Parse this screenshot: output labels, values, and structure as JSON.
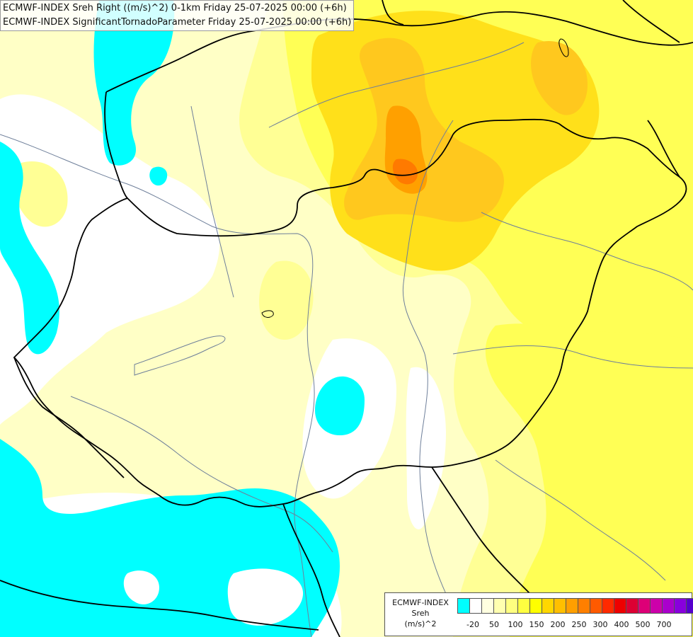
{
  "title": {
    "line1": "ECMWF-INDEX Sreh Right ((m/s)^2) 0-1km Friday 25-07-2025 00:00 (+6h)",
    "line2": "ECMWF-INDEX SignificantTornadoParameter Friday 25-07-2025 00:00 (+6h)"
  },
  "legend": {
    "line1": "ECMWF-INDEX",
    "line2": "Sreh",
    "line3": "(m/s)^2",
    "colors": [
      "#00ffff",
      "#ffffff",
      "#ffffe0",
      "#ffffb0",
      "#ffff80",
      "#ffff40",
      "#ffff00",
      "#ffd700",
      "#ffbf00",
      "#ff9f00",
      "#ff7f00",
      "#ff5a00",
      "#ff2a00",
      "#ee0000",
      "#dd0033",
      "#dd0077",
      "#cc00aa",
      "#aa00cc",
      "#8800dd",
      "#5500cc",
      "#2200aa"
    ],
    "ticks": [
      "-20",
      "50",
      "100",
      "150",
      "200",
      "250",
      "300",
      "400",
      "500",
      "700"
    ]
  },
  "map": {
    "region": "Hungary and surroundings",
    "fill_colors": {
      "background": "#ffffff",
      "pale": "#ffffc6",
      "light_yellow": "#ffff95",
      "yellow": "#ffff55",
      "gold": "#ffe01a",
      "orange_yellow": "#ffc81e",
      "orange": "#ffa000",
      "dark_orange": "#ff7a00",
      "cyan": "#00ffff"
    },
    "border_color": "#000000",
    "river_color": "#6e7f9a"
  }
}
